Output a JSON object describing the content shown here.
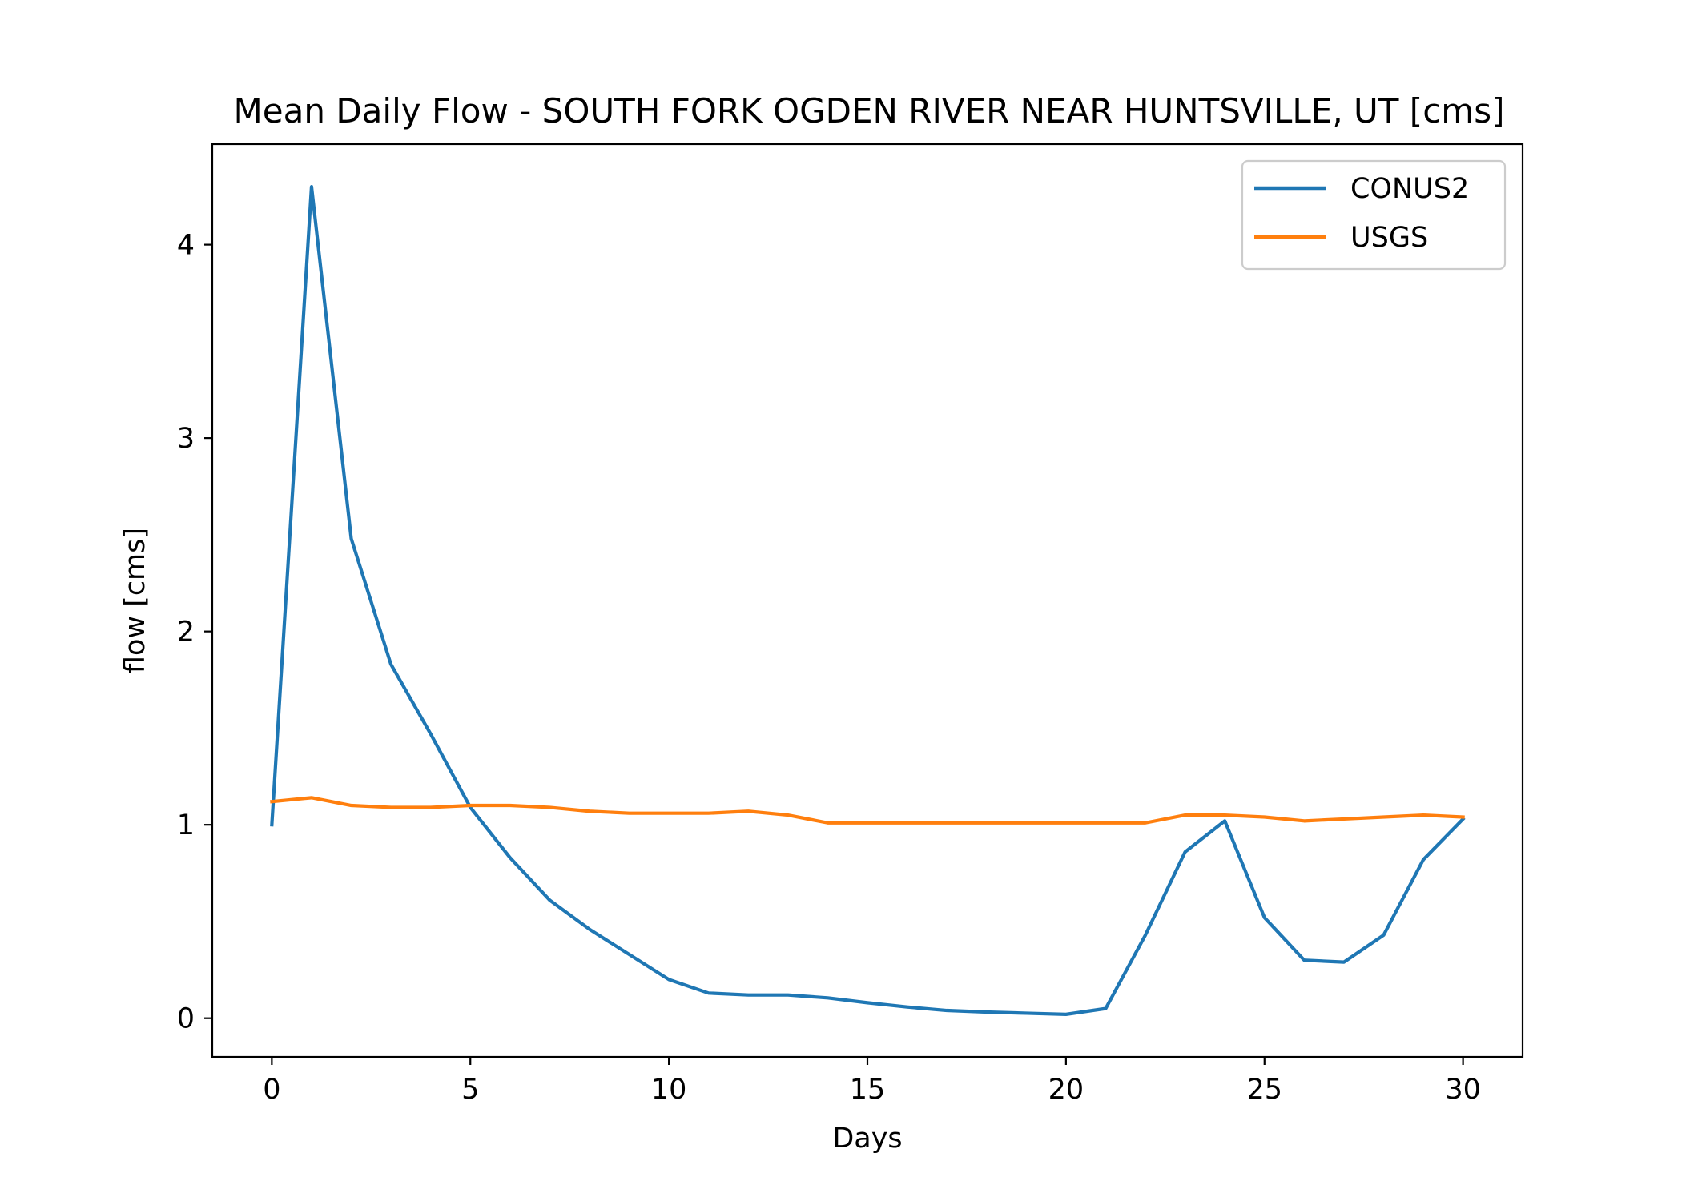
{
  "chart_data": {
    "type": "line",
    "title": "Mean Daily Flow - SOUTH FORK OGDEN RIVER NEAR HUNTSVILLE, UT [cms]",
    "xlabel": "Days",
    "ylabel": "flow [cms]",
    "xlim": [
      -1.5,
      31.5
    ],
    "ylim": [
      -0.2,
      4.52
    ],
    "xticks": [
      0,
      5,
      10,
      15,
      20,
      25,
      30
    ],
    "yticks": [
      0,
      1,
      2,
      3,
      4
    ],
    "grid": false,
    "legend_position": "top-right",
    "x": [
      0,
      1,
      2,
      3,
      4,
      5,
      6,
      7,
      8,
      9,
      10,
      11,
      12,
      13,
      14,
      15,
      16,
      17,
      18,
      19,
      20,
      21,
      22,
      23,
      24,
      25,
      26,
      27,
      28,
      29,
      30
    ],
    "series": [
      {
        "name": "CONUS2",
        "color": "#1f77b4",
        "values": [
          1.0,
          4.3,
          2.48,
          1.83,
          1.47,
          1.09,
          0.83,
          0.61,
          0.46,
          0.33,
          0.2,
          0.13,
          0.12,
          0.12,
          0.105,
          0.08,
          0.058,
          0.04,
          0.032,
          0.026,
          0.02,
          0.05,
          0.43,
          0.86,
          1.02,
          0.52,
          0.3,
          0.29,
          0.43,
          0.82,
          1.03
        ]
      },
      {
        "name": "USGS",
        "color": "#ff7f0e",
        "values": [
          1.12,
          1.14,
          1.1,
          1.09,
          1.09,
          1.1,
          1.1,
          1.09,
          1.07,
          1.06,
          1.06,
          1.06,
          1.07,
          1.05,
          1.01,
          1.01,
          1.01,
          1.01,
          1.01,
          1.01,
          1.01,
          1.01,
          1.01,
          1.05,
          1.05,
          1.04,
          1.02,
          1.03,
          1.04,
          1.05,
          1.04
        ]
      }
    ]
  }
}
